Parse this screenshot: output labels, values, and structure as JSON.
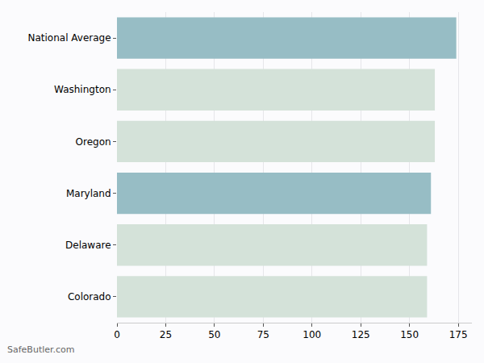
{
  "chart_data": {
    "type": "bar",
    "orientation": "horizontal",
    "categories": [
      "National Average",
      "Washington",
      "Oregon",
      "Maryland",
      "Delaware",
      "Colorado"
    ],
    "values": [
      174,
      163,
      163,
      161,
      159,
      159
    ],
    "colors": [
      "#97bdc5",
      "#d4e2d9",
      "#d4e2d9",
      "#97bdc5",
      "#d4e2d9",
      "#d4e2d9"
    ],
    "xlim": [
      0,
      182
    ],
    "xticks": [
      0,
      25,
      50,
      75,
      100,
      125,
      150,
      175
    ],
    "grid": true,
    "annotations": [
      "SafeButler.com"
    ]
  }
}
